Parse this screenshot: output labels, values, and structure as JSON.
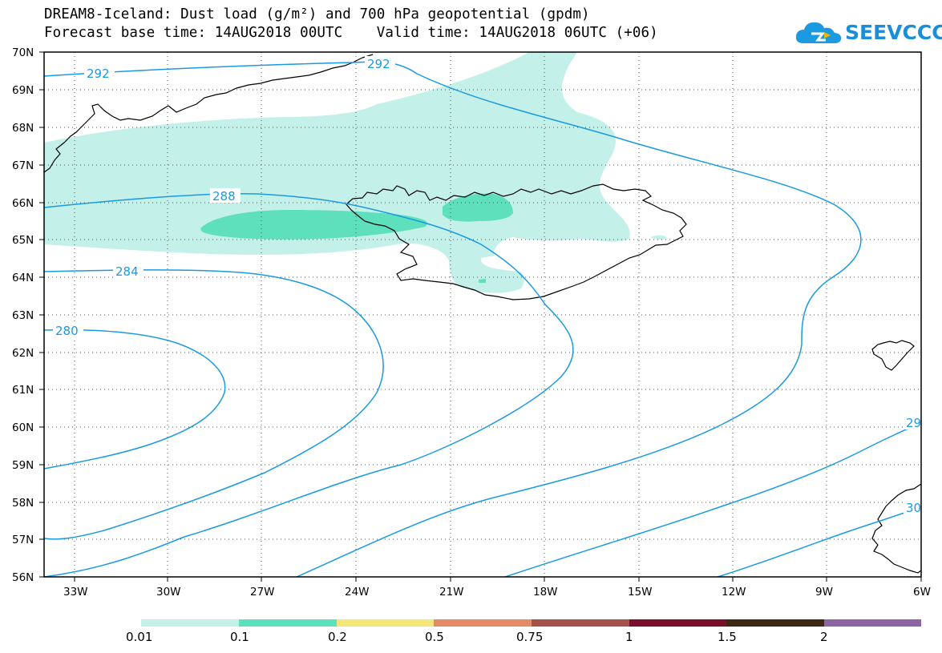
{
  "title": {
    "line1": "DREAM8-Iceland: Dust load (g/m²) and 700 hPa geopotential (gpdm)",
    "line2": "Forecast base time: 14AUG2018 00UTC    Valid time: 14AUG2018 06UTC (+06)"
  },
  "logo": {
    "text": "SEEVCCC",
    "color": "#1a8fd8"
  },
  "map": {
    "lat_labels": [
      "70N",
      "69N",
      "68N",
      "67N",
      "66N",
      "65N",
      "64N",
      "63N",
      "62N",
      "61N",
      "60N",
      "59N",
      "58N",
      "57N",
      "56N"
    ],
    "lon_labels": [
      "33W",
      "30W",
      "27W",
      "24W",
      "21W",
      "18W",
      "15W",
      "12W",
      "9W",
      "6W"
    ],
    "grid": "dotted",
    "contour_color": "#1a9ae0",
    "contour_labels": [
      "292",
      "292",
      "288",
      "284",
      "280",
      "29",
      "30"
    ]
  },
  "legend": {
    "swatches": [
      {
        "color": "#c4f0ea"
      },
      {
        "color": "#5ee0bc"
      },
      {
        "color": "#f5e67a"
      },
      {
        "color": "#e38a66"
      },
      {
        "color": "#a5524a"
      },
      {
        "color": "#7a0f2c"
      },
      {
        "color": "#3d2814"
      },
      {
        "color": "#8e65a3"
      }
    ],
    "labels": [
      "0.01",
      "0.1",
      "0.2",
      "0.5",
      "0.75",
      "1",
      "1.5",
      "2"
    ]
  }
}
